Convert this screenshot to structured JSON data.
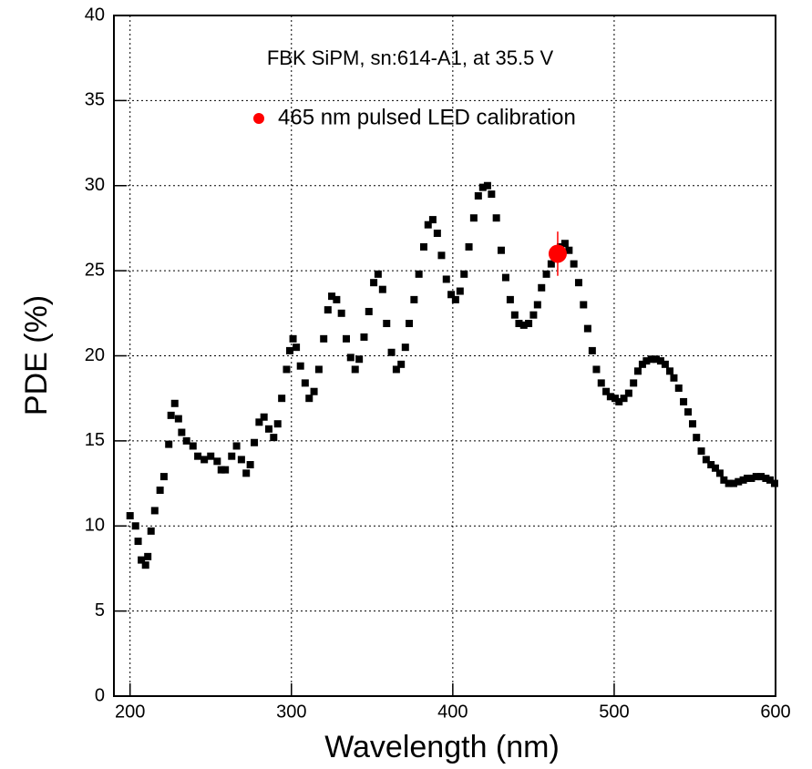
{
  "chart_data": {
    "type": "scatter",
    "annotation": "FBK SiPM, sn:614-A1, at 35.5 V",
    "xlabel": "Wavelength (nm)",
    "ylabel": "PDE (%)",
    "xlim": [
      190,
      600
    ],
    "ylim": [
      0,
      40
    ],
    "xticks": [
      200,
      300,
      400,
      500,
      600
    ],
    "yticks": [
      0,
      5,
      10,
      15,
      20,
      25,
      30,
      35,
      40
    ],
    "grid": true,
    "legend": "top",
    "series": [
      {
        "color": "#000000",
        "x": [
          200,
          203.4,
          205,
          207,
          209.6,
          211,
          213,
          215.3,
          218.6,
          221,
          224,
          225.4,
          227.7,
          230,
          232,
          235,
          239,
          242,
          246,
          250,
          254,
          256.5,
          259,
          263,
          266,
          269,
          272,
          274.5,
          277,
          280,
          283,
          286,
          289,
          291.5,
          294,
          297,
          299,
          301,
          303,
          305.6,
          308.5,
          311,
          314,
          317,
          320,
          322.6,
          325,
          328,
          331,
          334,
          336.7,
          339.5,
          342,
          345,
          348,
          351,
          353.7,
          356.5,
          359,
          362,
          365,
          368,
          370.6,
          373,
          376,
          379,
          382,
          384.7,
          387.6,
          390.4,
          393,
          396,
          399,
          401.7,
          404.5,
          407,
          410,
          413,
          415.8,
          418.6,
          421.5,
          424,
          427,
          430,
          432.8,
          435.6,
          438.4,
          441,
          444,
          447,
          450,
          452.5,
          455,
          458,
          461,
          464,
          466.7,
          469.5,
          472,
          475,
          478,
          481,
          483.6,
          486.4,
          489,
          492,
          495,
          497.7,
          500.6,
          503,
          506,
          509,
          512,
          514.7,
          517.5,
          520,
          523,
          526,
          528.8,
          531.6,
          534.5,
          537,
          540,
          543,
          545.8,
          548.6,
          551,
          554,
          557,
          560,
          562.7,
          565.5,
          568,
          571,
          574,
          577,
          580,
          582.5,
          585,
          588,
          591,
          594,
          596.6,
          599.4
        ],
        "values": [
          10.6,
          10.0,
          9.1,
          8.0,
          7.7,
          8.2,
          9.7,
          10.9,
          12.1,
          12.9,
          14.8,
          16.5,
          17.2,
          16.3,
          15.5,
          15.0,
          14.7,
          14.1,
          13.9,
          14.1,
          13.8,
          13.3,
          13.3,
          14.1,
          14.7,
          13.9,
          13.1,
          13.6,
          14.9,
          16.1,
          16.4,
          15.7,
          15.2,
          16.0,
          17.5,
          19.2,
          20.3,
          21.0,
          20.5,
          19.4,
          18.4,
          17.5,
          17.9,
          19.2,
          21.0,
          22.7,
          23.5,
          23.3,
          22.5,
          21.0,
          19.9,
          19.2,
          19.8,
          21.1,
          22.6,
          24.3,
          24.8,
          23.9,
          21.9,
          20.2,
          19.2,
          19.5,
          20.5,
          21.9,
          23.3,
          24.8,
          26.4,
          27.7,
          28.0,
          27.2,
          25.9,
          24.5,
          23.6,
          23.3,
          23.8,
          24.8,
          26.4,
          28.1,
          29.4,
          29.9,
          30.0,
          29.5,
          28.1,
          26.2,
          24.6,
          23.3,
          22.4,
          21.9,
          21.8,
          21.9,
          22.4,
          23.0,
          24.0,
          24.8,
          25.4,
          25.9,
          26.4,
          26.6,
          26.2,
          25.4,
          24.3,
          23.0,
          21.6,
          20.3,
          19.2,
          18.4,
          17.9,
          17.6,
          17.5,
          17.3,
          17.5,
          17.8,
          18.4,
          19.1,
          19.5,
          19.7,
          19.8,
          19.8,
          19.7,
          19.5,
          19.1,
          18.7,
          18.1,
          17.3,
          16.7,
          16.0,
          15.2,
          14.4,
          13.9,
          13.6,
          13.4,
          13.1,
          12.7,
          12.5,
          12.5,
          12.6,
          12.7,
          12.8,
          12.8,
          12.9,
          12.9,
          12.8,
          12.7,
          12.5
        ]
      },
      {
        "name": "465 nm pulsed LED calibration",
        "color": "#ff0000",
        "x": [
          465
        ],
        "values": [
          26.0
        ],
        "errors": [
          1.3
        ]
      }
    ]
  }
}
